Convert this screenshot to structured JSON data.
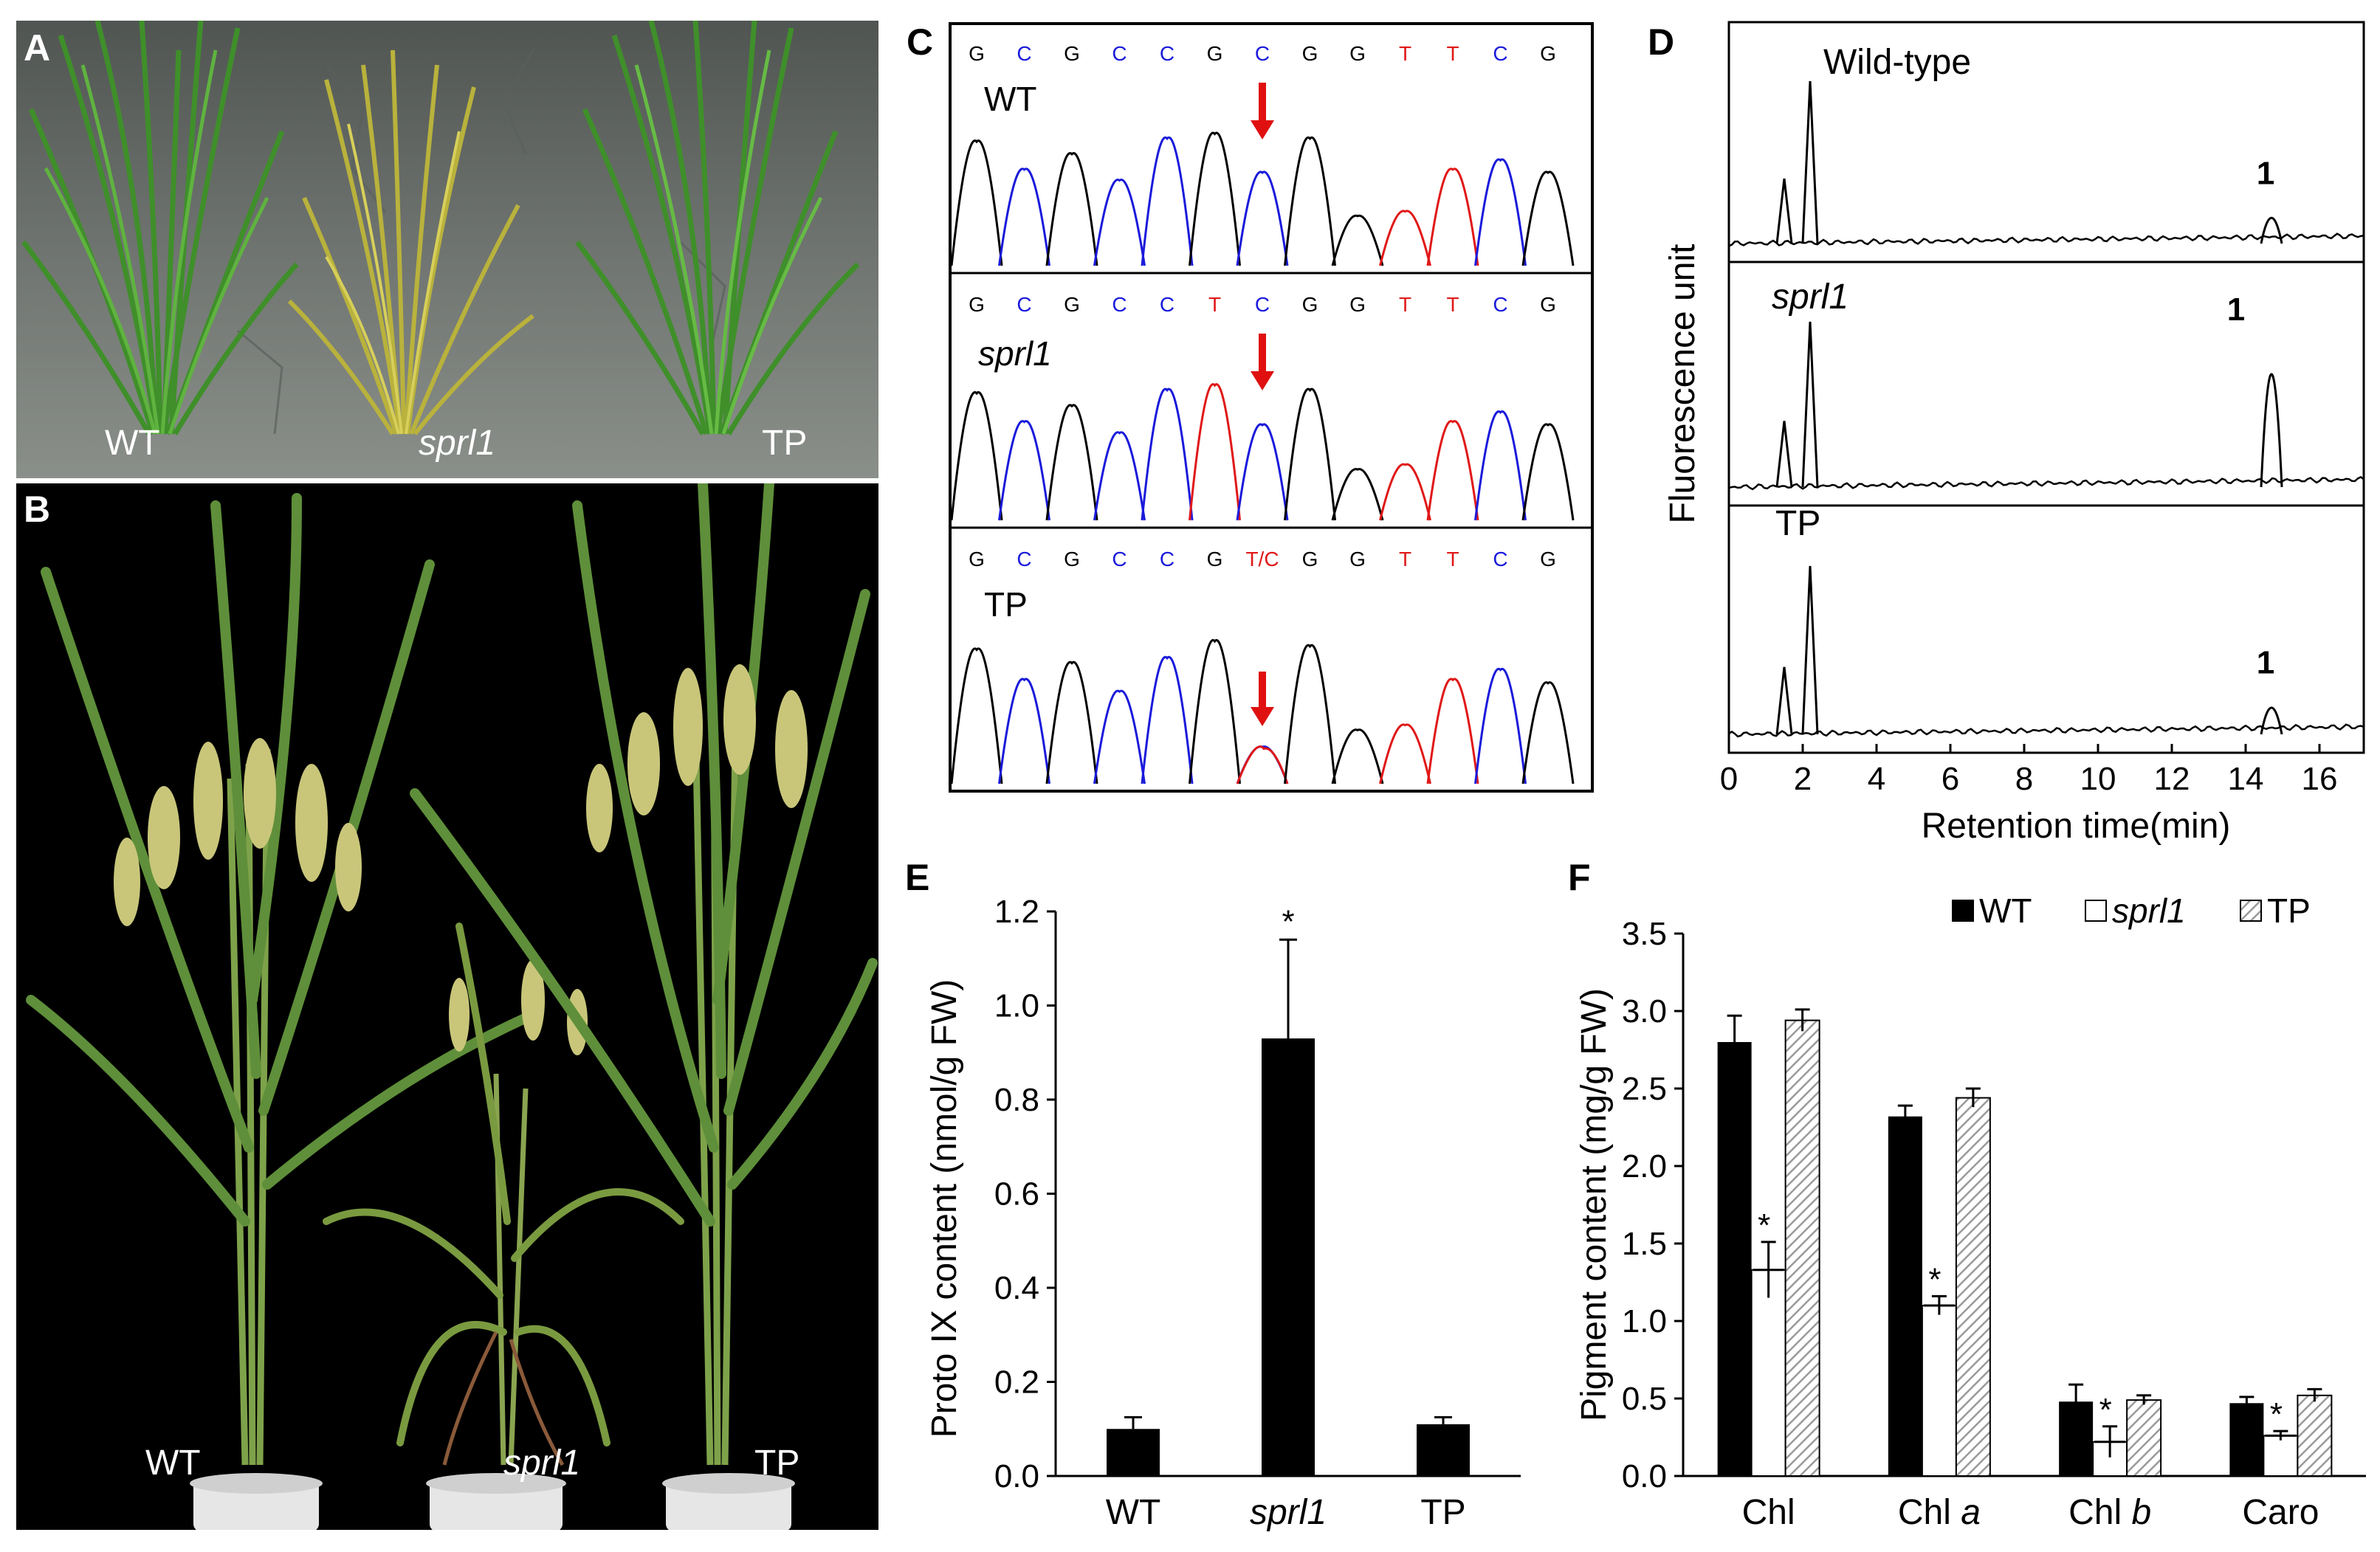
{
  "panels": {
    "A": {
      "label": "A",
      "captions": [
        "WT",
        "sprl1",
        "TP"
      ]
    },
    "B": {
      "label": "B",
      "captions": [
        "WT",
        "sprl1",
        "TP"
      ]
    },
    "C": {
      "label": "C",
      "rows": [
        {
          "name": "WT",
          "bases": [
            "G",
            "C",
            "G",
            "C",
            "C",
            "G",
            "C",
            "G",
            "G",
            "T",
            "T",
            "C",
            "G"
          ]
        },
        {
          "name": "sprl1",
          "bases": [
            "G",
            "C",
            "G",
            "C",
            "C",
            "T",
            "C",
            "G",
            "G",
            "T",
            "T",
            "C",
            "G"
          ]
        },
        {
          "name": "TP",
          "bases": [
            "G",
            "C",
            "G",
            "C",
            "C",
            "G",
            "T/C",
            "G",
            "G",
            "T",
            "T",
            "C",
            "G"
          ]
        }
      ]
    },
    "D": {
      "label": "D",
      "traces": [
        "Wild-type",
        "sprl1",
        "TP"
      ],
      "peak_label": "1",
      "ylabel": "Fluorescence unit",
      "xlabel": "Retention time(min)",
      "xticks": [
        "0",
        "2",
        "4",
        "6",
        "8",
        "10",
        "12",
        "14",
        "16"
      ],
      "xrange": [
        0,
        17.2
      ],
      "peak_heights": [
        0.22,
        0.95,
        0.22
      ]
    },
    "E": {
      "label": "E"
    },
    "F": {
      "label": "F"
    }
  },
  "chart_data": [
    {
      "type": "bar",
      "title": "",
      "categories": [
        "WT",
        "sprl1",
        "TP"
      ],
      "values": [
        0.1,
        0.93,
        0.11
      ],
      "errors": [
        0.025,
        0.21,
        0.015
      ],
      "significance": [
        "",
        "*",
        ""
      ],
      "ylabel": "Proto IX content (nmol/g FW)",
      "ylim": [
        0,
        1.2
      ],
      "yticks": [
        "0.0",
        "0.2",
        "0.4",
        "0.6",
        "0.8",
        "1.0",
        "1.2"
      ]
    },
    {
      "type": "bar",
      "title": "",
      "categories": [
        "Chl",
        "Chl a",
        "Chl b",
        "Caro"
      ],
      "series": [
        {
          "name": "WT",
          "values": [
            2.8,
            2.32,
            0.48,
            0.47
          ],
          "errors": [
            0.17,
            0.07,
            0.11,
            0.04
          ]
        },
        {
          "name": "sprl1",
          "values": [
            1.33,
            1.1,
            0.22,
            0.26
          ],
          "errors": [
            0.18,
            0.06,
            0.1,
            0.03
          ]
        },
        {
          "name": "TP",
          "values": [
            2.94,
            2.44,
            0.49,
            0.52
          ],
          "errors": [
            0.07,
            0.06,
            0.03,
            0.04
          ]
        }
      ],
      "significance": {
        "sprl1": [
          "*",
          "*",
          "*",
          "*"
        ]
      },
      "ylabel": "Pigment content (mg/g FW)",
      "ylim": [
        0,
        3.5
      ],
      "yticks": [
        "0.0",
        "0.5",
        "1.0",
        "1.5",
        "2.0",
        "2.5",
        "3.0",
        "3.5"
      ],
      "legend": "top-right"
    }
  ]
}
